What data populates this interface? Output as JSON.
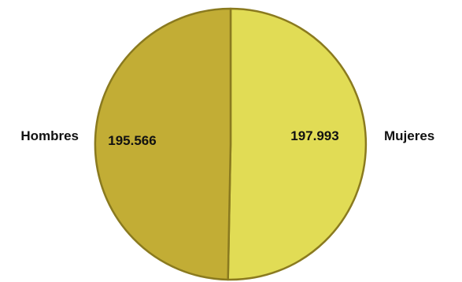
{
  "chart_data": {
    "type": "pie",
    "title": "",
    "categories": [
      "Hombres",
      "Mujeres"
    ],
    "values": [
      195566,
      197993
    ],
    "value_labels": [
      "195.566",
      "197.993"
    ],
    "colors": [
      "#c2ad35",
      "#e1dc55"
    ],
    "edge_color": "#8a7a1f",
    "legend": "none"
  }
}
